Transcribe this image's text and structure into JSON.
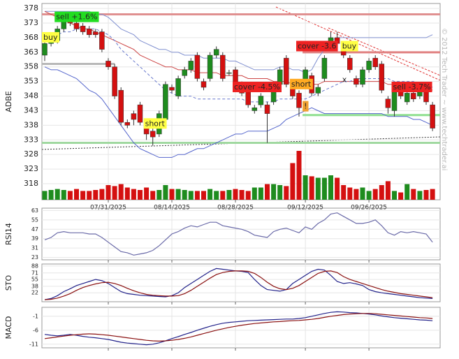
{
  "watermark": "© 2012 Tech Trader ~ www.techtrader.ai",
  "chart_data": [
    {
      "type": "candlestick",
      "ylabel": "ADBE",
      "categories": [
        null,
        null,
        null,
        null,
        null,
        null,
        null,
        null,
        null,
        null,
        "07/31/2025",
        null,
        null,
        null,
        null,
        null,
        null,
        null,
        null,
        null,
        "08/14/2025",
        null,
        null,
        null,
        null,
        null,
        null,
        null,
        null,
        null,
        "08/28/2025",
        null,
        null,
        null,
        null,
        null,
        null,
        null,
        null,
        null,
        null,
        "09/12/2025",
        null,
        null,
        null,
        null,
        null,
        null,
        null,
        null,
        null,
        "09/26/2025",
        null,
        null,
        null,
        null,
        null,
        null,
        null,
        null,
        null,
        null
      ],
      "open": [
        362,
        366,
        367,
        371,
        374,
        373,
        372,
        371,
        370,
        370,
        360,
        358,
        350,
        339,
        342,
        345,
        339,
        336,
        335,
        340,
        351,
        348,
        355,
        357,
        362,
        353,
        354,
        362,
        362,
        356,
        357,
        352,
        350,
        343,
        345,
        345,
        346,
        352,
        361,
        352,
        349,
        353,
        355,
        349,
        354,
        366,
        368,
        365,
        361,
        354,
        352,
        357,
        361,
        359,
        347,
        343,
        350,
        346,
        349,
        348,
        350,
        345
      ],
      "high": [
        367,
        369,
        372,
        375,
        375,
        374,
        373,
        372,
        371,
        371,
        361,
        359,
        351,
        340,
        343,
        346,
        340,
        337,
        343,
        353,
        352,
        355,
        358,
        361,
        363,
        354,
        363,
        365,
        363,
        357,
        358,
        353,
        351,
        345,
        349,
        346,
        353,
        358,
        362,
        353,
        350,
        358,
        356,
        352,
        362,
        370,
        370,
        366,
        362,
        355,
        358,
        361,
        362,
        360,
        348,
        351,
        351,
        350,
        350,
        351,
        351,
        346
      ],
      "low": [
        360,
        365,
        366,
        370,
        372,
        370,
        369,
        368,
        368,
        363,
        357,
        347,
        338,
        337,
        338,
        338,
        333,
        331,
        334,
        339,
        349,
        347,
        354,
        356,
        353,
        350,
        353,
        361,
        353,
        355,
        351,
        348,
        344,
        342,
        344,
        332,
        345,
        351,
        351,
        347,
        341,
        352,
        348,
        348,
        353,
        365,
        365,
        361,
        356,
        351,
        351,
        356,
        357,
        349,
        342,
        341,
        347,
        345,
        346,
        347,
        345,
        336
      ],
      "close": [
        366,
        368,
        371,
        374,
        373,
        371,
        370,
        369,
        369,
        364,
        358,
        348,
        339,
        338,
        340,
        339,
        335,
        334,
        342,
        352,
        350,
        354,
        357,
        360,
        354,
        351,
        362,
        364,
        354,
        356,
        352,
        349,
        345,
        344,
        348,
        342,
        352,
        357,
        352,
        348,
        344,
        357,
        349,
        351,
        361,
        368,
        366,
        362,
        357,
        352,
        357,
        360,
        358,
        350,
        344,
        350,
        348,
        349,
        347,
        350,
        346,
        337
      ],
      "volume": [
        18,
        20,
        22,
        20,
        18,
        22,
        18,
        18,
        20,
        22,
        30,
        28,
        32,
        25,
        22,
        20,
        25,
        18,
        20,
        30,
        22,
        22,
        20,
        18,
        18,
        18,
        22,
        18,
        18,
        20,
        22,
        20,
        18,
        25,
        25,
        32,
        32,
        30,
        28,
        75,
        100,
        50,
        48,
        45,
        45,
        50,
        45,
        30,
        25,
        22,
        25,
        18,
        22,
        30,
        38,
        18,
        15,
        32,
        22,
        18,
        20,
        22
      ],
      "volume_ylim": [
        0,
        100
      ],
      "up_color": "#1e8c1e",
      "down_color": "#d41010",
      "overlays": [
        {
          "color": "#8090d0",
          "dash": false,
          "values": [
            377,
            377,
            377,
            377,
            377,
            377,
            377,
            377,
            376,
            376,
            375,
            373,
            371,
            370,
            369,
            367,
            366,
            365,
            364,
            364,
            363,
            363,
            362,
            362,
            362,
            361,
            361,
            361,
            361,
            360,
            360,
            359,
            358,
            357,
            357,
            357,
            357,
            358,
            358,
            357,
            357,
            356,
            357,
            361,
            364,
            367,
            368,
            368,
            368,
            368,
            368,
            368,
            368,
            368,
            368,
            368,
            368,
            368,
            368,
            368,
            368,
            369
          ]
        },
        {
          "color": "#5566cc",
          "dash": false,
          "values": [
            358,
            357,
            357,
            356,
            355,
            354,
            352,
            350,
            349,
            347,
            344,
            341,
            338,
            335,
            332,
            330,
            329,
            328,
            327,
            327,
            327,
            328,
            328,
            329,
            330,
            330,
            331,
            332,
            333,
            334,
            335,
            335,
            336,
            336,
            336,
            336,
            337,
            338,
            340,
            341,
            342,
            343,
            344,
            343,
            342,
            342,
            342,
            342,
            342,
            342,
            342,
            342,
            342,
            342,
            341,
            341,
            341,
            341,
            340,
            340,
            339,
            338
          ]
        },
        {
          "color": "#cc4444",
          "dash": false,
          "values": [
            377,
            376,
            375,
            374,
            373,
            372,
            371,
            371,
            370,
            369,
            368,
            367,
            366,
            365,
            364,
            362,
            361,
            360,
            359,
            358,
            358,
            357,
            357,
            357,
            356,
            356,
            356,
            356,
            355,
            355,
            355,
            355,
            354,
            354,
            354,
            354,
            353,
            353,
            353,
            352,
            352,
            352,
            352,
            352,
            353,
            353,
            353,
            353,
            353,
            353,
            353,
            353,
            353,
            353,
            352,
            352,
            352,
            352,
            351,
            351,
            351,
            350
          ]
        },
        {
          "color": "#6677cc",
          "dash": true,
          "values": [
            368,
            368,
            369,
            370,
            370,
            371,
            371,
            371,
            371,
            370,
            369,
            367,
            364,
            362,
            360,
            358,
            356,
            354,
            352,
            350,
            349,
            348,
            348,
            348,
            347,
            347,
            347,
            347,
            347,
            347,
            347,
            347,
            346,
            346,
            346,
            346,
            346,
            347,
            347,
            347,
            347,
            347,
            348,
            349,
            350,
            351,
            352,
            353,
            353,
            354,
            354,
            354,
            354,
            354,
            354,
            353,
            353,
            353,
            353,
            352,
            352,
            351
          ]
        }
      ],
      "levels": [
        {
          "value": 376,
          "color": "#e09090",
          "from": 0,
          "to": 61
        },
        {
          "value": 359,
          "color": "#b8b8b8",
          "from": 0,
          "to": 11
        },
        {
          "value": 363,
          "color": "#e08080",
          "from": 41,
          "to": 61
        },
        {
          "value": 341.5,
          "color": "#90e090",
          "from": 41,
          "to": 61
        },
        {
          "value": 332,
          "color": "#a0d8a0",
          "from": 0,
          "to": 61
        }
      ],
      "signals": [
        {
          "label": "buy",
          "index": 0,
          "price": 368,
          "color": "#ffff44"
        },
        {
          "label": "sell +1.6%",
          "index": 2,
          "price": 375,
          "color": "#22dd22"
        },
        {
          "label": "short",
          "index": 16,
          "price": 338.5,
          "color": "#ffff44"
        },
        {
          "label": "cover -4.5%",
          "index": 30,
          "price": 351,
          "color": "#ee2222"
        },
        {
          "label": "short",
          "index": 39,
          "price": 352,
          "color": "#ffaa22"
        },
        {
          "label": "cover -3.6",
          "index": 40,
          "price": 365,
          "color": "#ee2222"
        },
        {
          "label": "buy",
          "index": 47,
          "price": 365,
          "color": "#ffff44"
        },
        {
          "label": "sell -3.7%",
          "index": 55,
          "price": 351,
          "color": "#ee2222"
        },
        {
          "label": "x",
          "index": 47,
          "price": 353.5,
          "color": null
        },
        {
          "label": "!",
          "index": 41,
          "price": 344.4,
          "color": "#f0a030"
        }
      ],
      "ylim": [
        312.5,
        379.7
      ],
      "yticks": [
        318,
        323,
        328,
        333,
        338,
        343,
        348,
        353,
        358,
        363,
        368,
        373,
        378
      ],
      "grid": true
    },
    {
      "type": "line",
      "ylabel": "RSI14",
      "ylim": [
        21,
        65
      ],
      "yticks": [
        23,
        31,
        39,
        47,
        55,
        63
      ],
      "grid": true,
      "series": [
        {
          "color": "#6a6aa8",
          "values": [
            38,
            40,
            44,
            45,
            44,
            44,
            44,
            43,
            43,
            40,
            36,
            32,
            28,
            27,
            25,
            26,
            27,
            29,
            33,
            38,
            43,
            45,
            48,
            50,
            49,
            51,
            53,
            53,
            50,
            49,
            48,
            47,
            45,
            42,
            41,
            40,
            45,
            47,
            48,
            46,
            44,
            49,
            47,
            52,
            55,
            60,
            61,
            58,
            55,
            52,
            52,
            53,
            55,
            50,
            44,
            42,
            45,
            44,
            45,
            44,
            43,
            36
          ]
        }
      ]
    },
    {
      "type": "line",
      "ylabel": "STO",
      "ylim": [
        0,
        93
      ],
      "yticks": [
        22,
        38,
        55,
        71,
        88
      ],
      "grid": true,
      "series": [
        {
          "color": "#22228a",
          "values": [
            5,
            8,
            15,
            25,
            32,
            40,
            45,
            50,
            55,
            52,
            45,
            35,
            25,
            20,
            18,
            16,
            15,
            14,
            13,
            12,
            15,
            22,
            35,
            45,
            55,
            65,
            75,
            82,
            80,
            78,
            76,
            75,
            72,
            55,
            40,
            30,
            28,
            26,
            30,
            45,
            55,
            65,
            75,
            80,
            78,
            65,
            50,
            45,
            47,
            44,
            40,
            30,
            25,
            22,
            20,
            18,
            16,
            14,
            12,
            10,
            9,
            8
          ]
        },
        {
          "color": "#8a1010",
          "values": [
            5,
            6,
            9,
            14,
            20,
            28,
            35,
            40,
            44,
            47,
            48,
            45,
            40,
            33,
            27,
            22,
            18,
            16,
            15,
            14,
            14,
            15,
            20,
            28,
            38,
            48,
            58,
            67,
            72,
            75,
            76,
            76,
            75,
            70,
            60,
            48,
            38,
            32,
            30,
            33,
            40,
            50,
            60,
            70,
            75,
            76,
            72,
            62,
            55,
            50,
            45,
            40,
            35,
            30,
            26,
            23,
            20,
            18,
            16,
            14,
            12,
            10
          ]
        }
      ]
    },
    {
      "type": "line",
      "ylabel": "MACD",
      "ylim": [
        -12.3,
        2.2
      ],
      "yticks": [
        -11,
        -6,
        -1
      ],
      "grid": true,
      "series": [
        {
          "color": "#22228a",
          "values": [
            -7.5,
            -7.8,
            -8,
            -7.8,
            -7.5,
            -7.8,
            -8.2,
            -8.5,
            -8.7,
            -9,
            -9.3,
            -9.8,
            -10.3,
            -10.6,
            -10.8,
            -11,
            -11.2,
            -11,
            -10.5,
            -9.8,
            -9,
            -8.3,
            -7.5,
            -6.8,
            -6,
            -5.3,
            -4.6,
            -4,
            -3.5,
            -3.2,
            -3,
            -2.8,
            -2.6,
            -2.5,
            -2.4,
            -2.3,
            -2.2,
            -2.1,
            -2,
            -2,
            -1.8,
            -1.5,
            -1,
            -0.5,
            0,
            0.4,
            0.6,
            0.5,
            0.3,
            0.2,
            0,
            -0.2,
            -0.5,
            -0.9,
            -1.2,
            -1.5,
            -1.7,
            -1.9,
            -2.1,
            -2.3,
            -2.4,
            -2.6
          ]
        },
        {
          "color": "#8a1010",
          "values": [
            -9,
            -8.7,
            -8.4,
            -8.1,
            -7.8,
            -7.6,
            -7.4,
            -7.3,
            -7.4,
            -7.6,
            -7.8,
            -8.1,
            -8.4,
            -8.7,
            -9,
            -9.3,
            -9.6,
            -9.8,
            -9.9,
            -9.8,
            -9.6,
            -9.3,
            -8.9,
            -8.4,
            -7.8,
            -7.2,
            -6.6,
            -6,
            -5.5,
            -5,
            -4.6,
            -4.2,
            -3.9,
            -3.6,
            -3.4,
            -3.2,
            -3,
            -2.9,
            -2.7,
            -2.6,
            -2.5,
            -2.3,
            -2.1,
            -1.8,
            -1.4,
            -1,
            -0.7,
            -0.4,
            -0.2,
            -0.1,
            0,
            0,
            -0.1,
            -0.3,
            -0.5,
            -0.7,
            -0.9,
            -1.1,
            -1.3,
            -1.5,
            -1.6,
            -1.8
          ]
        }
      ]
    }
  ]
}
